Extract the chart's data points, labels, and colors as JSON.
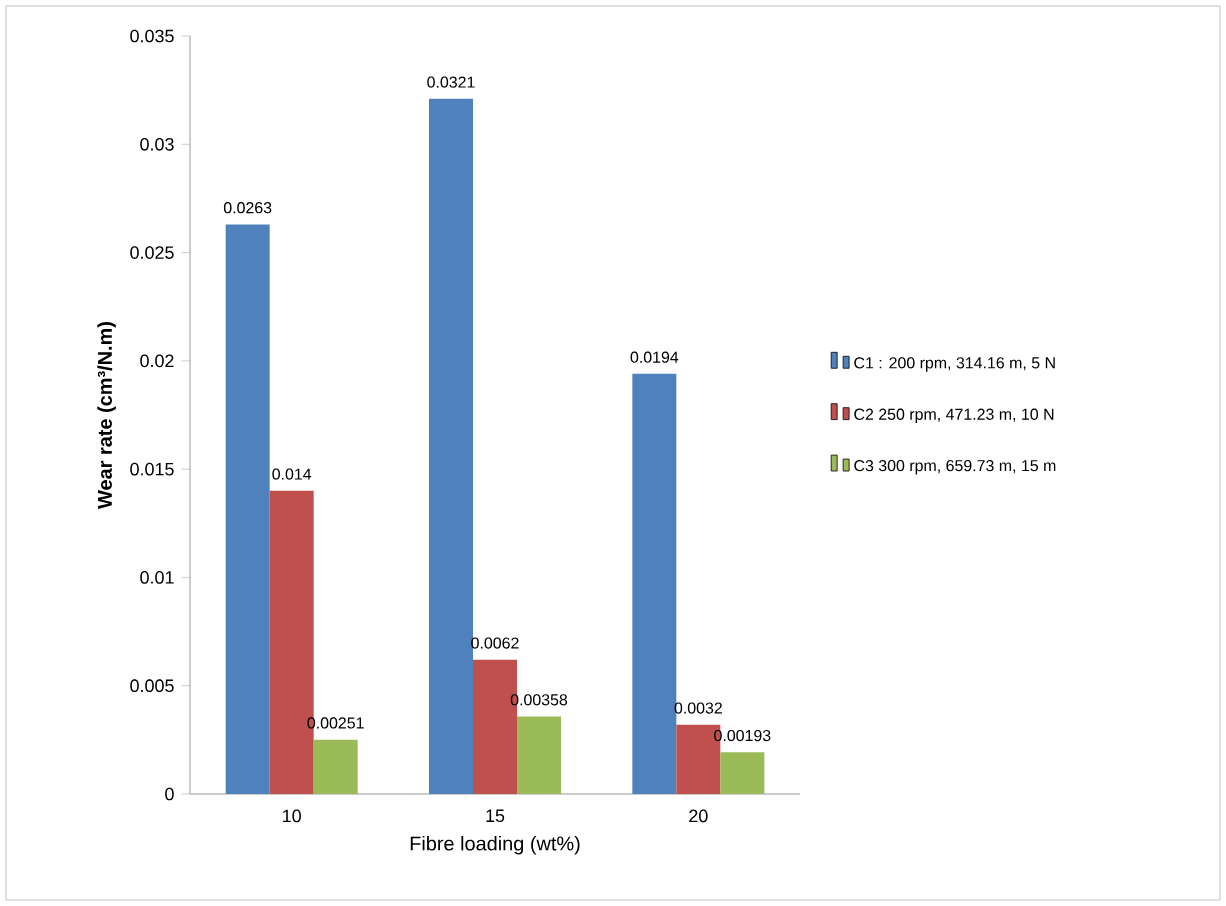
{
  "chart_data": {
    "type": "bar",
    "xlabel": "Fibre loading (wt%)",
    "ylabel": "Wear rate (cm³/N.m)",
    "categories": [
      "10",
      "15",
      "20"
    ],
    "series": [
      {
        "name": "C1 : 200 rpm, 314.16 m, 5 N",
        "color": "#4f81bd",
        "values": [
          0.0263,
          0.0321,
          0.0194
        ]
      },
      {
        "name": "C2 250 rpm, 471.23 m, 10 N",
        "color": "#c0504d",
        "values": [
          0.014,
          0.0062,
          0.0032
        ]
      },
      {
        "name": "C3 300 rpm, 659.73 m, 15 m",
        "color": "#9bbb59",
        "values": [
          0.00251,
          0.00358,
          0.00193
        ]
      }
    ],
    "ylim": [
      0,
      0.035
    ],
    "yticks": [
      0,
      0.005,
      0.01,
      0.015,
      0.02,
      0.025,
      0.03,
      0.035
    ],
    "data_labels": true,
    "legend": "right",
    "grid": false
  }
}
